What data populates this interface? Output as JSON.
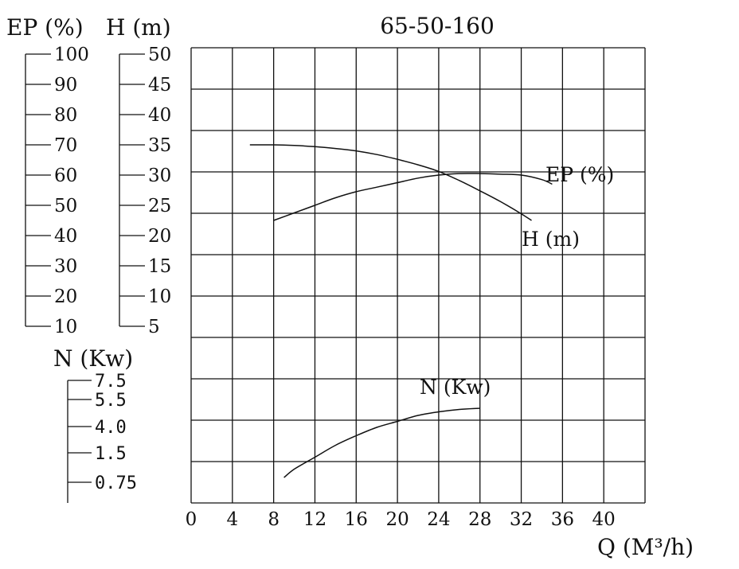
{
  "chart_data": {
    "type": "line",
    "title": "65-50-160",
    "xlabel": "Q (M³/h)",
    "x_ticks": [
      "0",
      "4",
      "8",
      "12",
      "16",
      "20",
      "24",
      "28",
      "32",
      "36",
      "40"
    ],
    "xlim": [
      0,
      44
    ],
    "grid": true,
    "left_axes": {
      "ep": {
        "label": "EP (%)",
        "ticks": [
          "100",
          "90",
          "80",
          "70",
          "60",
          "50",
          "40",
          "30",
          "20",
          "10"
        ]
      },
      "h": {
        "label": "H (m)",
        "ticks": [
          "50",
          "45",
          "40",
          "35",
          "30",
          "25",
          "20",
          "15",
          "10",
          "5"
        ]
      },
      "n": {
        "label": "N (Kw)",
        "ticks": [
          "7.5",
          "5.5",
          "4.0",
          "1.5",
          "0.75"
        ]
      }
    },
    "series": [
      {
        "name": "H (m)",
        "unit": "m",
        "x": [
          5.7,
          8,
          10,
          12,
          14,
          16,
          18,
          20,
          22,
          24,
          26,
          28,
          30,
          32,
          33
        ],
        "y": [
          35,
          35,
          34.9,
          34.7,
          34.4,
          34,
          33.4,
          32.6,
          31.7,
          30.6,
          29.1,
          27.4,
          25.6,
          23.6,
          22.5
        ]
      },
      {
        "name": "EP (%)",
        "unit": "%",
        "x": [
          8,
          10,
          12,
          14,
          16,
          18,
          20,
          22,
          24,
          26,
          28,
          30,
          32,
          34,
          35
        ],
        "y": [
          45,
          47.5,
          50,
          52.5,
          54.5,
          56,
          57.5,
          59,
          60,
          60.5,
          60.5,
          60.3,
          60,
          58.5,
          57
        ]
      },
      {
        "name": "N (Kw)",
        "unit": "kW",
        "x": [
          9,
          10,
          12,
          14,
          16,
          18,
          20,
          22,
          24,
          26,
          28
        ],
        "y": [
          0.2,
          0.55,
          1.05,
          1.55,
          1.95,
          2.3,
          2.55,
          2.8,
          2.95,
          3.05,
          3.1
        ]
      }
    ]
  }
}
